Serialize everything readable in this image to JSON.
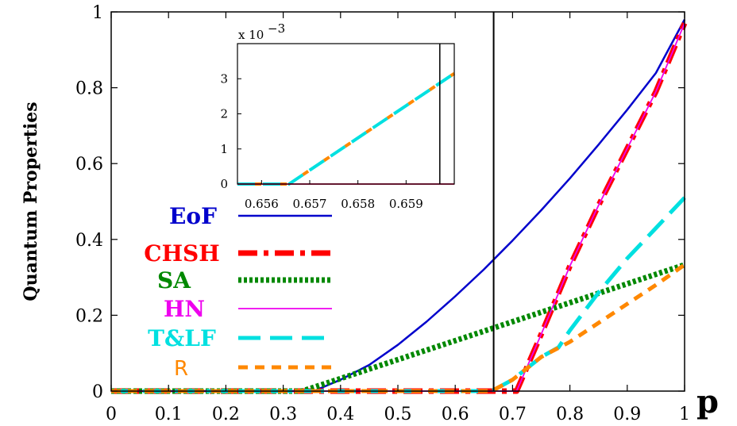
{
  "chart_data": {
    "type": "line",
    "xlabel": "p",
    "ylabel": "Quantum Properties",
    "xlim": [
      0,
      1
    ],
    "ylim": [
      0,
      1
    ],
    "xticks": [
      "0",
      "0.1",
      "0.2",
      "0.3",
      "0.4",
      "0.5",
      "0.6",
      "0.7",
      "0.8",
      "0.9",
      "1"
    ],
    "yticks": [
      "0",
      "0.2",
      "0.4",
      "0.6",
      "0.8",
      "1"
    ],
    "vertical_line_x": 0.667,
    "legend_position": "left-center",
    "series": [
      {
        "name": "EoF",
        "color": "#0000cc",
        "style": "solid",
        "x": [
          0,
          0.353,
          0.4,
          0.45,
          0.5,
          0.55,
          0.6,
          0.65,
          0.7,
          0.75,
          0.8,
          0.85,
          0.9,
          0.95,
          1.0
        ],
        "y": [
          0,
          0,
          0.03,
          0.069,
          0.122,
          0.183,
          0.25,
          0.321,
          0.397,
          0.477,
          0.561,
          0.65,
          0.742,
          0.839,
          0.98
        ]
      },
      {
        "name": "CHSH",
        "color": "#ff0000",
        "style": "dashdot",
        "x": [
          0,
          0.707,
          0.75,
          0.8,
          0.85,
          0.9,
          0.95,
          1.0
        ],
        "y": [
          0,
          0,
          0.15,
          0.33,
          0.49,
          0.64,
          0.79,
          0.97
        ]
      },
      {
        "name": "SA",
        "color": "#008800",
        "style": "dotted",
        "x": [
          0,
          0.333,
          0.4,
          0.5,
          0.6,
          0.7,
          0.8,
          0.9,
          1.0
        ],
        "y": [
          0,
          0,
          0.033,
          0.083,
          0.133,
          0.183,
          0.233,
          0.283,
          0.333
        ]
      },
      {
        "name": "HN",
        "color": "#ee00ee",
        "style": "solid-thin",
        "x": [
          0,
          0.707,
          0.75,
          0.8,
          0.85,
          0.9,
          0.95,
          1.0
        ],
        "y": [
          0,
          0,
          0.15,
          0.33,
          0.49,
          0.64,
          0.79,
          0.97
        ]
      },
      {
        "name": "T&LF",
        "color": "#00e0e0",
        "style": "dashed",
        "x": [
          0,
          0.6565,
          0.667,
          0.7,
          0.75,
          0.78,
          0.8,
          0.85,
          0.9,
          0.95,
          1.0
        ],
        "y": [
          0,
          0,
          0.003,
          0.03,
          0.09,
          0.115,
          0.16,
          0.26,
          0.35,
          0.43,
          0.51
        ]
      },
      {
        "name": "R",
        "color": "#ff8800",
        "style": "short-dashed",
        "x": [
          0,
          0.6565,
          0.667,
          0.7,
          0.75,
          0.8,
          0.85,
          0.9,
          0.95,
          1.0
        ],
        "y": [
          0,
          0,
          0.003,
          0.03,
          0.09,
          0.13,
          0.18,
          0.23,
          0.28,
          0.333
        ]
      }
    ],
    "inset": {
      "xlim": [
        0.6555,
        0.66
      ],
      "ylim": [
        0,
        0.004
      ],
      "xticks": [
        "0.656",
        "0.657",
        "0.658",
        "0.659"
      ],
      "yticks": [
        "0",
        "1",
        "2",
        "3"
      ],
      "scale_label": "x 10",
      "scale_exp": "−3",
      "vertical_line_x": 0.6597,
      "series": [
        {
          "name": "T&LF",
          "color": "#00e0e0",
          "x": [
            0.6555,
            0.65657,
            0.66
          ],
          "y": [
            0,
            0,
            0.00315
          ]
        },
        {
          "name": "R",
          "color": "#ff8800",
          "x": [
            0.6555,
            0.65657,
            0.66
          ],
          "y": [
            0,
            0,
            0.00315
          ]
        },
        {
          "name": "HN",
          "color": "#ee00ee",
          "x": [
            0.6555,
            0.66
          ],
          "y": [
            0,
            0
          ]
        },
        {
          "name": "CHSH",
          "color": "#ff0000",
          "x": [
            0.6555,
            0.66
          ],
          "y": [
            0,
            0
          ]
        }
      ]
    }
  }
}
